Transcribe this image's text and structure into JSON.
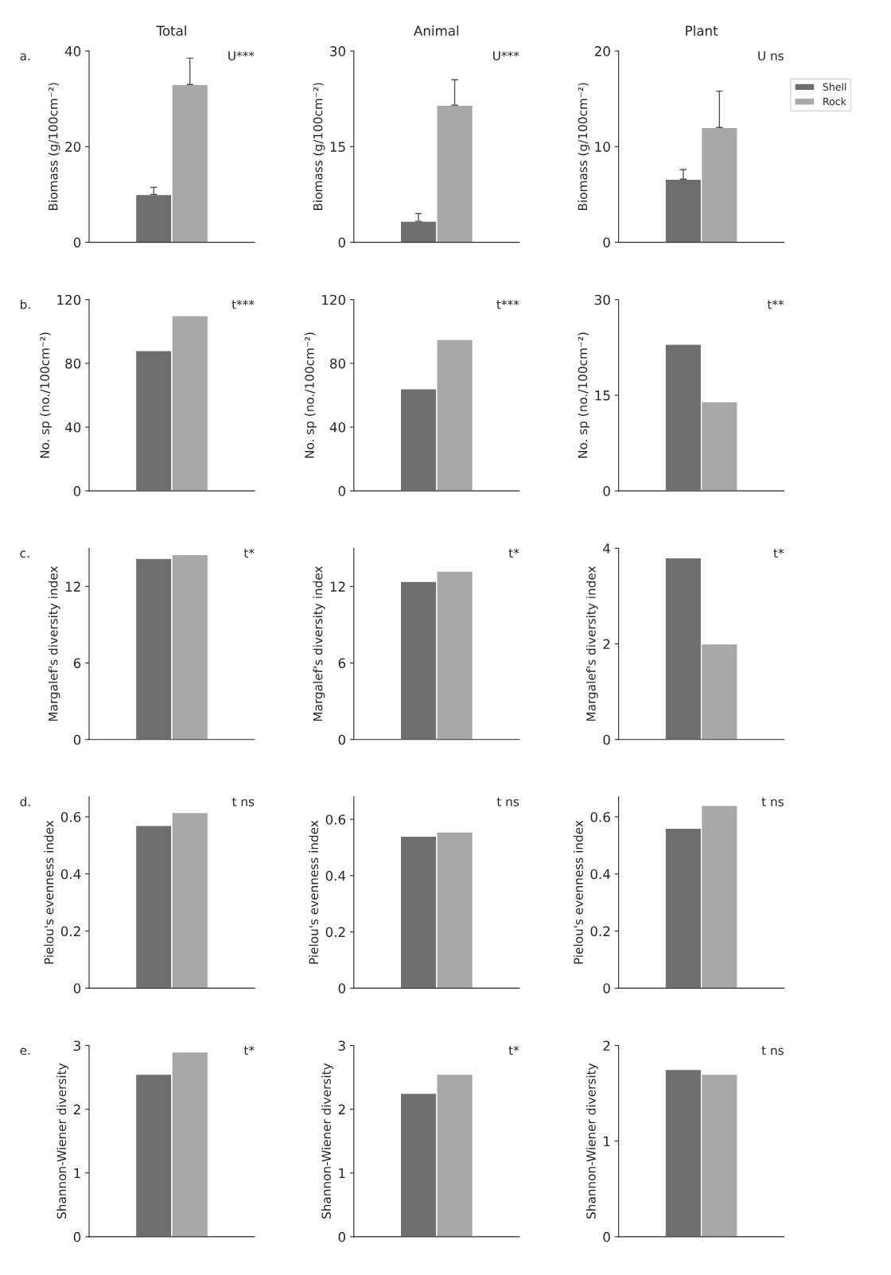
{
  "chart_data": [
    {
      "type": "bar",
      "title": "Total",
      "ylabel": "Biomass (g/100cm⁻²)",
      "categories": [
        null
      ],
      "tick_labels": "y",
      "ylim": [
        0,
        40
      ],
      "yticks": [
        0,
        20,
        40
      ],
      "annotations": [
        "U***",
        "a."
      ],
      "series": [
        {
          "color": "#6e6e6e",
          "values": [
            10
          ],
          "errors": [
            1.5
          ]
        },
        {
          "color": "#a8a8a8",
          "values": [
            33
          ],
          "errors": [
            5.5
          ]
        }
      ]
    },
    {
      "type": "bar",
      "title": "Animal",
      "ylabel": "Biomass (g/100cm⁻²)",
      "categories": [
        null
      ],
      "tick_labels": "y",
      "ylim": [
        0,
        30
      ],
      "yticks": [
        0,
        15,
        30
      ],
      "annotations": [
        "U***"
      ],
      "series": [
        {
          "color": "#6e6e6e",
          "values": [
            3.3
          ],
          "errors": [
            1.2
          ]
        },
        {
          "color": "#a8a8a8",
          "values": [
            21.5
          ],
          "errors": [
            4
          ]
        }
      ]
    },
    {
      "type": "bar",
      "title": "Plant",
      "ylabel": "Biomass (g/100cm⁻²)",
      "categories": [
        null
      ],
      "tick_labels": "y",
      "ylim": [
        0,
        20
      ],
      "yticks": [
        0,
        10,
        20
      ],
      "annotations": [
        "U ns"
      ],
      "legend": "right",
      "series": [
        {
          "name": "Shell",
          "color": "#6e6e6e",
          "values": [
            6.6
          ],
          "errors": [
            1
          ]
        },
        {
          "name": "Rock",
          "color": "#a8a8a8",
          "values": [
            12
          ],
          "errors": [
            3.8
          ]
        }
      ]
    },
    {
      "type": "bar",
      "ylabel": "No. sp (no./100cm⁻²)",
      "categories": [
        null
      ],
      "tick_labels": "y",
      "ylim": [
        0,
        120
      ],
      "yticks": [
        0,
        40,
        80,
        120
      ],
      "annotations": [
        "t***",
        "b."
      ],
      "series": [
        {
          "color": "#6e6e6e",
          "values": [
            88
          ]
        },
        {
          "color": "#a8a8a8",
          "values": [
            110
          ]
        }
      ]
    },
    {
      "type": "bar",
      "ylabel": "No. sp (no./100cm⁻²)",
      "categories": [
        null
      ],
      "tick_labels": "y",
      "ylim": [
        0,
        120
      ],
      "yticks": [
        0,
        40,
        80,
        120
      ],
      "annotations": [
        "t***"
      ],
      "series": [
        {
          "color": "#6e6e6e",
          "values": [
            64
          ]
        },
        {
          "color": "#a8a8a8",
          "values": [
            95
          ]
        }
      ]
    },
    {
      "type": "bar",
      "ylabel": "No. sp (no./100cm⁻²)",
      "categories": [
        null
      ],
      "tick_labels": "y",
      "ylim": [
        0,
        30
      ],
      "yticks": [
        0,
        15,
        30
      ],
      "annotations": [
        "t**"
      ],
      "series": [
        {
          "color": "#6e6e6e",
          "values": [
            23
          ]
        },
        {
          "color": "#a8a8a8",
          "values": [
            14
          ]
        }
      ]
    },
    {
      "type": "bar",
      "ylabel": "Margalef's diversity index",
      "categories": [
        null
      ],
      "tick_labels": "y",
      "ylim": [
        0,
        15
      ],
      "yticks": [
        0,
        6,
        12
      ],
      "annotations": [
        "t*",
        "c."
      ],
      "series": [
        {
          "color": "#6e6e6e",
          "values": [
            14.2
          ]
        },
        {
          "color": "#a8a8a8",
          "values": [
            14.5
          ]
        }
      ]
    },
    {
      "type": "bar",
      "ylabel": "Margalef's diversity index",
      "categories": [
        null
      ],
      "tick_labels": "y",
      "ylim": [
        0,
        15
      ],
      "yticks": [
        0,
        6,
        12
      ],
      "annotations": [
        "t*"
      ],
      "series": [
        {
          "color": "#6e6e6e",
          "values": [
            12.4
          ]
        },
        {
          "color": "#a8a8a8",
          "values": [
            13.2
          ]
        }
      ]
    },
    {
      "type": "bar",
      "ylabel": "Margalef's diversity index",
      "categories": [
        null
      ],
      "tick_labels": "y",
      "ylim": [
        0,
        4
      ],
      "yticks": [
        0,
        2,
        4
      ],
      "annotations": [
        "t*"
      ],
      "series": [
        {
          "color": "#6e6e6e",
          "values": [
            3.8
          ]
        },
        {
          "color": "#a8a8a8",
          "values": [
            2.0
          ]
        }
      ]
    },
    {
      "type": "bar",
      "ylabel": "Pielou's evenness index",
      "categories": [
        null
      ],
      "tick_labels": "y",
      "ylim": [
        0,
        0.67
      ],
      "yticks": [
        0,
        0.2,
        0.4,
        0.6
      ],
      "annotations": [
        "t ns",
        "d."
      ],
      "series": [
        {
          "color": "#6e6e6e",
          "values": [
            0.57
          ]
        },
        {
          "color": "#a8a8a8",
          "values": [
            0.615
          ]
        }
      ]
    },
    {
      "type": "bar",
      "ylabel": "Pielou's evenness index",
      "categories": [
        null
      ],
      "tick_labels": "y",
      "ylim": [
        0,
        0.68
      ],
      "yticks": [
        0,
        0.2,
        0.4,
        0.6
      ],
      "annotations": [
        "t ns"
      ],
      "series": [
        {
          "color": "#6e6e6e",
          "values": [
            0.54
          ]
        },
        {
          "color": "#a8a8a8",
          "values": [
            0.555
          ]
        }
      ]
    },
    {
      "type": "bar",
      "ylabel": "Pielou's evenness index",
      "categories": [
        null
      ],
      "tick_labels": "y",
      "ylim": [
        0,
        0.67
      ],
      "yticks": [
        0,
        0.2,
        0.4,
        0.6
      ],
      "annotations": [
        "t ns"
      ],
      "series": [
        {
          "color": "#6e6e6e",
          "values": [
            0.56
          ]
        },
        {
          "color": "#a8a8a8",
          "values": [
            0.64
          ]
        }
      ]
    },
    {
      "type": "bar",
      "ylabel": "Shannon-Wiener diversity",
      "categories": [
        null
      ],
      "tick_labels": "y",
      "ylim": [
        0,
        3
      ],
      "yticks": [
        0,
        1,
        2,
        3
      ],
      "annotations": [
        "t*",
        "e."
      ],
      "series": [
        {
          "color": "#6e6e6e",
          "values": [
            2.55
          ]
        },
        {
          "color": "#a8a8a8",
          "values": [
            2.9
          ]
        }
      ]
    },
    {
      "type": "bar",
      "ylabel": "Shannon-Wiener diversity",
      "categories": [
        null
      ],
      "tick_labels": "y",
      "ylim": [
        0,
        3
      ],
      "yticks": [
        0,
        1,
        2,
        3
      ],
      "annotations": [
        "t*"
      ],
      "series": [
        {
          "color": "#6e6e6e",
          "values": [
            2.25
          ]
        },
        {
          "color": "#a8a8a8",
          "values": [
            2.55
          ]
        }
      ]
    },
    {
      "type": "bar",
      "ylabel": "Shannon-Wiener diversity",
      "categories": [
        null
      ],
      "tick_labels": "y",
      "ylim": [
        0,
        2
      ],
      "yticks": [
        0,
        1,
        2
      ],
      "annotations": [
        "t ns"
      ],
      "series": [
        {
          "color": "#6e6e6e",
          "values": [
            1.75
          ]
        },
        {
          "color": "#a8a8a8",
          "values": [
            1.7
          ]
        }
      ]
    }
  ]
}
